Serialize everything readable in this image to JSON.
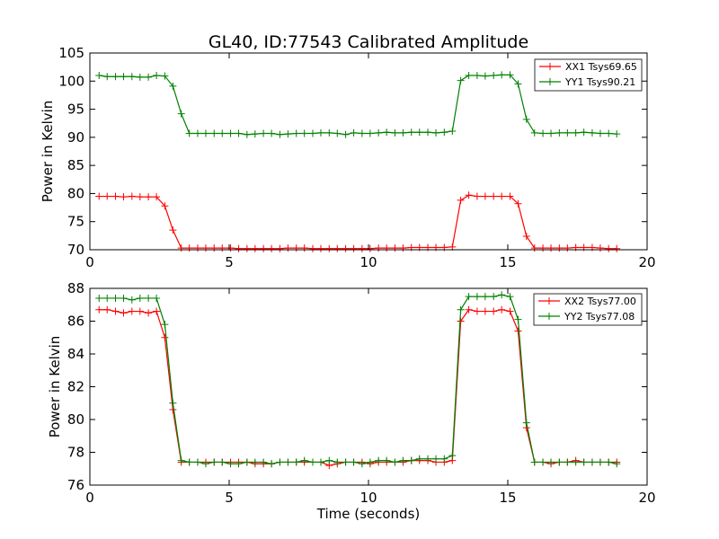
{
  "chart_data": [
    {
      "type": "line",
      "title": "GL40, ID:77543 Calibrated Amplitude",
      "xlabel": "",
      "ylabel": "Power in Kelvin",
      "xlim": [
        0,
        20
      ],
      "ylim": [
        70,
        105
      ],
      "xticks": [
        0,
        5,
        10,
        15,
        20
      ],
      "yticks": [
        70,
        75,
        80,
        85,
        90,
        95,
        100,
        105
      ],
      "grid": false,
      "legend_position": "top-right",
      "x": [
        0.33,
        0.62,
        0.92,
        1.21,
        1.51,
        1.8,
        2.1,
        2.39,
        2.69,
        2.98,
        3.28,
        3.57,
        3.87,
        4.16,
        4.46,
        4.75,
        5.05,
        5.34,
        5.64,
        5.93,
        6.23,
        6.52,
        6.82,
        7.11,
        7.41,
        7.7,
        8.0,
        8.29,
        8.59,
        8.88,
        9.18,
        9.47,
        9.77,
        10.06,
        10.36,
        10.65,
        10.95,
        11.24,
        11.54,
        11.83,
        12.13,
        12.42,
        12.72,
        13.01,
        13.31,
        13.6,
        13.9,
        14.19,
        14.49,
        14.78,
        15.08,
        15.37,
        15.67,
        15.96,
        16.26,
        16.55,
        16.85,
        17.14,
        17.44,
        17.73,
        18.03,
        18.32,
        18.62,
        18.91
      ],
      "series": [
        {
          "name": "XX1 Tsys69.65",
          "color": "#ff0000",
          "values": [
            79.5,
            79.5,
            79.5,
            79.4,
            79.5,
            79.4,
            79.4,
            79.4,
            77.8,
            73.5,
            70.3,
            70.3,
            70.3,
            70.3,
            70.3,
            70.3,
            70.3,
            70.2,
            70.2,
            70.2,
            70.2,
            70.2,
            70.2,
            70.3,
            70.3,
            70.3,
            70.2,
            70.2,
            70.2,
            70.2,
            70.2,
            70.2,
            70.2,
            70.2,
            70.3,
            70.3,
            70.3,
            70.3,
            70.4,
            70.4,
            70.4,
            70.4,
            70.4,
            70.5,
            78.8,
            79.7,
            79.5,
            79.5,
            79.5,
            79.5,
            79.5,
            78.2,
            72.4,
            70.3,
            70.3,
            70.3,
            70.3,
            70.3,
            70.4,
            70.4,
            70.4,
            70.3,
            70.2,
            70.2
          ]
        },
        {
          "name": "YY1 Tsys90.21",
          "color": "#008000",
          "values": [
            101.0,
            100.8,
            100.8,
            100.8,
            100.8,
            100.7,
            100.7,
            101.0,
            100.9,
            99.1,
            94.2,
            90.7,
            90.7,
            90.7,
            90.7,
            90.7,
            90.7,
            90.7,
            90.5,
            90.6,
            90.7,
            90.7,
            90.5,
            90.6,
            90.7,
            90.7,
            90.7,
            90.8,
            90.8,
            90.7,
            90.5,
            90.8,
            90.7,
            90.7,
            90.8,
            90.9,
            90.8,
            90.8,
            90.9,
            90.9,
            90.9,
            90.8,
            90.9,
            91.1,
            100.1,
            101.0,
            101.0,
            100.9,
            101.0,
            101.1,
            101.1,
            99.5,
            93.2,
            90.8,
            90.7,
            90.7,
            90.8,
            90.8,
            90.8,
            90.9,
            90.8,
            90.7,
            90.7,
            90.6
          ]
        }
      ]
    },
    {
      "type": "line",
      "title": "",
      "xlabel": "Time (seconds)",
      "ylabel": "Power in Kelvin",
      "xlim": [
        0,
        20
      ],
      "ylim": [
        76,
        88
      ],
      "xticks": [
        0,
        5,
        10,
        15,
        20
      ],
      "yticks": [
        76,
        78,
        80,
        82,
        84,
        86,
        88
      ],
      "grid": false,
      "legend_position": "top-right",
      "x": [
        0.33,
        0.62,
        0.92,
        1.21,
        1.51,
        1.8,
        2.1,
        2.39,
        2.69,
        2.98,
        3.28,
        3.57,
        3.87,
        4.16,
        4.46,
        4.75,
        5.05,
        5.34,
        5.64,
        5.93,
        6.23,
        6.52,
        6.82,
        7.11,
        7.41,
        7.7,
        8.0,
        8.29,
        8.59,
        8.88,
        9.18,
        9.47,
        9.77,
        10.06,
        10.36,
        10.65,
        10.95,
        11.24,
        11.54,
        11.83,
        12.13,
        12.42,
        12.72,
        13.01,
        13.31,
        13.6,
        13.9,
        14.19,
        14.49,
        14.78,
        15.08,
        15.37,
        15.67,
        15.96,
        16.26,
        16.55,
        16.85,
        17.14,
        17.44,
        17.73,
        18.03,
        18.32,
        18.62,
        18.91
      ],
      "series": [
        {
          "name": "XX2 Tsys77.00",
          "color": "#ff0000",
          "values": [
            86.7,
            86.7,
            86.6,
            86.5,
            86.6,
            86.6,
            86.5,
            86.6,
            85.0,
            80.6,
            77.4,
            77.4,
            77.4,
            77.4,
            77.4,
            77.4,
            77.4,
            77.4,
            77.4,
            77.3,
            77.3,
            77.3,
            77.4,
            77.4,
            77.4,
            77.4,
            77.4,
            77.4,
            77.2,
            77.3,
            77.4,
            77.4,
            77.4,
            77.3,
            77.4,
            77.4,
            77.4,
            77.4,
            77.5,
            77.5,
            77.5,
            77.4,
            77.4,
            77.5,
            86.0,
            86.7,
            86.6,
            86.6,
            86.6,
            86.7,
            86.6,
            85.4,
            79.5,
            77.4,
            77.4,
            77.3,
            77.4,
            77.4,
            77.5,
            77.4,
            77.4,
            77.4,
            77.4,
            77.4
          ]
        },
        {
          "name": "YY2 Tsys77.08",
          "color": "#008000",
          "values": [
            87.4,
            87.4,
            87.4,
            87.4,
            87.3,
            87.4,
            87.4,
            87.4,
            85.8,
            81.0,
            77.5,
            77.4,
            77.4,
            77.3,
            77.4,
            77.4,
            77.3,
            77.3,
            77.4,
            77.4,
            77.4,
            77.3,
            77.4,
            77.4,
            77.4,
            77.5,
            77.4,
            77.4,
            77.5,
            77.4,
            77.4,
            77.4,
            77.3,
            77.4,
            77.5,
            77.5,
            77.4,
            77.5,
            77.5,
            77.6,
            77.6,
            77.6,
            77.6,
            77.8,
            86.7,
            87.5,
            87.5,
            87.5,
            87.5,
            87.6,
            87.5,
            86.1,
            79.8,
            77.4,
            77.4,
            77.4,
            77.4,
            77.4,
            77.4,
            77.4,
            77.4,
            77.4,
            77.4,
            77.3
          ]
        }
      ]
    }
  ]
}
